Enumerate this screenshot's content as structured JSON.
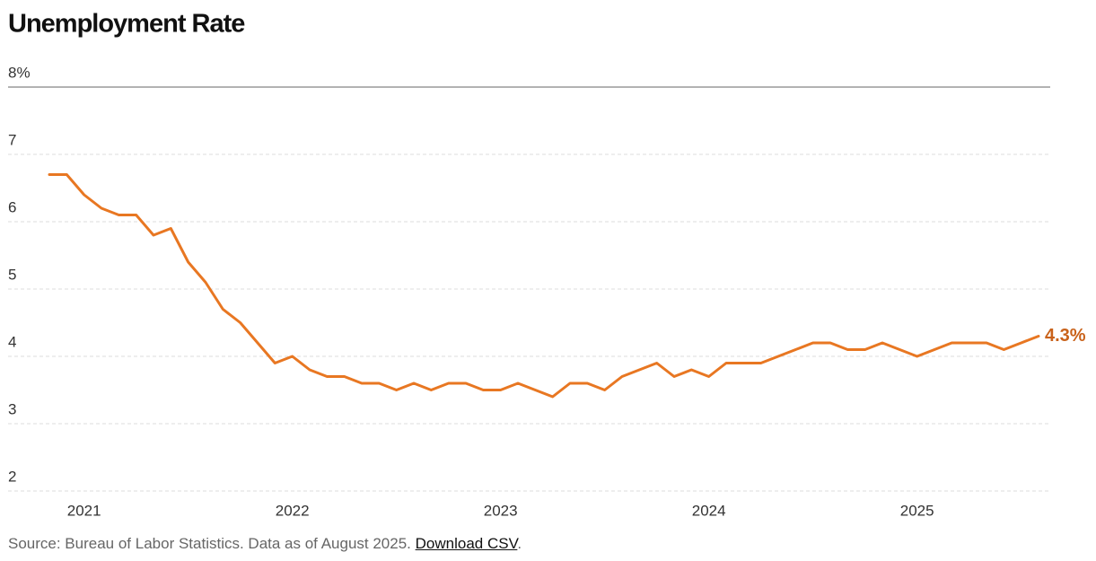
{
  "chart_data": {
    "type": "line",
    "title": "Unemployment Rate",
    "categories": [
      null,
      null,
      "2021",
      null,
      null,
      null,
      null,
      null,
      null,
      null,
      null,
      null,
      null,
      null,
      "2022",
      null,
      null,
      null,
      null,
      null,
      null,
      null,
      null,
      null,
      null,
      null,
      "2023",
      null,
      null,
      null,
      null,
      null,
      null,
      null,
      null,
      null,
      null,
      null,
      "2024",
      null,
      null,
      null,
      null,
      null,
      null,
      null,
      null,
      null,
      null,
      null,
      "2025",
      null,
      null,
      null,
      null,
      null,
      null,
      null
    ],
    "values": [
      6.7,
      6.7,
      6.4,
      6.2,
      6.1,
      6.1,
      5.8,
      5.9,
      5.4,
      5.1,
      4.7,
      4.5,
      4.2,
      3.9,
      4.0,
      3.8,
      3.7,
      3.7,
      3.6,
      3.6,
      3.5,
      3.6,
      3.5,
      3.6,
      3.6,
      3.5,
      3.5,
      3.6,
      3.5,
      3.4,
      3.6,
      3.6,
      3.5,
      3.7,
      3.8,
      3.9,
      3.7,
      3.8,
      3.7,
      3.9,
      3.9,
      3.9,
      4.0,
      4.1,
      4.2,
      4.2,
      4.1,
      4.1,
      4.2,
      4.1,
      4.0,
      4.1,
      4.2,
      4.2,
      4.2,
      4.1,
      4.2,
      4.3
    ],
    "value_labels": [
      null,
      null,
      null,
      null,
      null,
      null,
      null,
      null,
      null,
      null,
      null,
      null,
      null,
      null,
      null,
      null,
      null,
      null,
      null,
      null,
      null,
      null,
      null,
      null,
      null,
      null,
      null,
      null,
      null,
      null,
      null,
      null,
      null,
      null,
      null,
      null,
      null,
      null,
      null,
      null,
      null,
      null,
      null,
      null,
      null,
      null,
      null,
      null,
      null,
      null,
      null,
      null,
      null,
      null,
      null,
      null,
      null,
      "4.3%"
    ],
    "color": "#e87722",
    "label_color": "#c9621a",
    "ylim": [
      2,
      8
    ],
    "yticks": [
      2,
      3,
      4,
      5,
      6,
      7,
      {
        "value": 8,
        "label": "8%"
      }
    ],
    "grid": true,
    "source": "Source: Bureau of Labor Statistics. Data as of August 2025.",
    "link": "Download CSV",
    "source_end": "."
  }
}
